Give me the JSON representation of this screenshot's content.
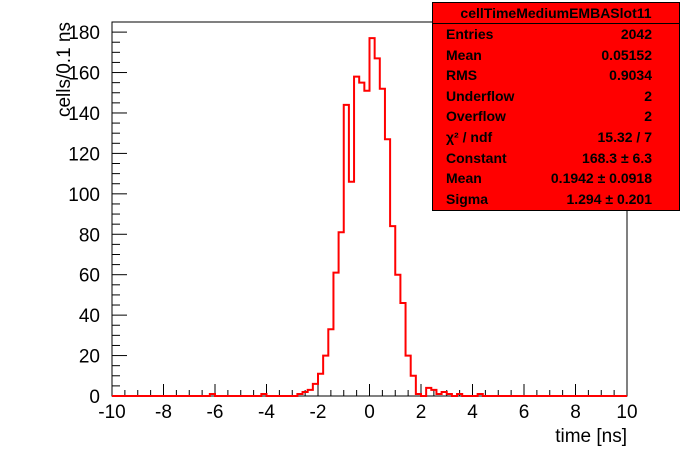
{
  "chart_data": {
    "type": "bar",
    "xlabel": "time [ns]",
    "ylabel": "cells/0.1 ns",
    "xlim": [
      -10,
      10
    ],
    "ylim": [
      0,
      185
    ],
    "x_ticks": [
      "-10",
      "-8",
      "-6",
      "-4",
      "-2",
      "0",
      "2",
      "4",
      "6",
      "8",
      "10"
    ],
    "y_ticks": [
      "0",
      "20",
      "40",
      "60",
      "80",
      "100",
      "120",
      "140",
      "160",
      "180"
    ],
    "bin_width": 0.2,
    "series": [
      {
        "color": "#ff0000",
        "bins": [
          {
            "x": -6.2,
            "y": 1
          },
          {
            "x": -4.2,
            "y": 1
          },
          {
            "x": -2.8,
            "y": 1
          },
          {
            "x": -2.6,
            "y": 2
          },
          {
            "x": -2.4,
            "y": 3
          },
          {
            "x": -2.2,
            "y": 6
          },
          {
            "x": -2.0,
            "y": 11
          },
          {
            "x": -1.8,
            "y": 20
          },
          {
            "x": -1.6,
            "y": 33
          },
          {
            "x": -1.4,
            "y": 61
          },
          {
            "x": -1.2,
            "y": 81
          },
          {
            "x": -1.0,
            "y": 144
          },
          {
            "x": -0.8,
            "y": 106
          },
          {
            "x": -0.6,
            "y": 158
          },
          {
            "x": -0.4,
            "y": 155
          },
          {
            "x": -0.2,
            "y": 151
          },
          {
            "x": 0.0,
            "y": 177
          },
          {
            "x": 0.2,
            "y": 167
          },
          {
            "x": 0.4,
            "y": 152
          },
          {
            "x": 0.6,
            "y": 127
          },
          {
            "x": 0.8,
            "y": 84
          },
          {
            "x": 1.0,
            "y": 60
          },
          {
            "x": 1.2,
            "y": 46
          },
          {
            "x": 1.4,
            "y": 20
          },
          {
            "x": 1.6,
            "y": 10
          },
          {
            "x": 1.8,
            "y": 1
          },
          {
            "x": 2.2,
            "y": 4
          },
          {
            "x": 2.4,
            "y": 3
          },
          {
            "x": 2.6,
            "y": 1
          },
          {
            "x": 2.8,
            "y": 2
          },
          {
            "x": 3.0,
            "y": 1
          },
          {
            "x": 3.4,
            "y": 1
          },
          {
            "x": 4.2,
            "y": 1
          }
        ]
      }
    ]
  },
  "stats_box": {
    "title": "cellTimeMediumEMBASlot11",
    "rows": [
      {
        "label": "Entries",
        "value": "2042"
      },
      {
        "label": "Mean",
        "value": "0.05152"
      },
      {
        "label": "RMS",
        "value": "0.9034"
      },
      {
        "label": "Underflow",
        "value": "2"
      },
      {
        "label": "Overflow",
        "value": "2"
      },
      {
        "label": "χ² / ndf",
        "value": "15.32 / 7"
      },
      {
        "label": "Constant",
        "value": "168.3 ± 6.3"
      },
      {
        "label": "Mean",
        "value": "0.1942 ± 0.0918"
      },
      {
        "label": "Sigma",
        "value": "1.294 ± 0.201"
      }
    ],
    "background": "#ff0000"
  }
}
